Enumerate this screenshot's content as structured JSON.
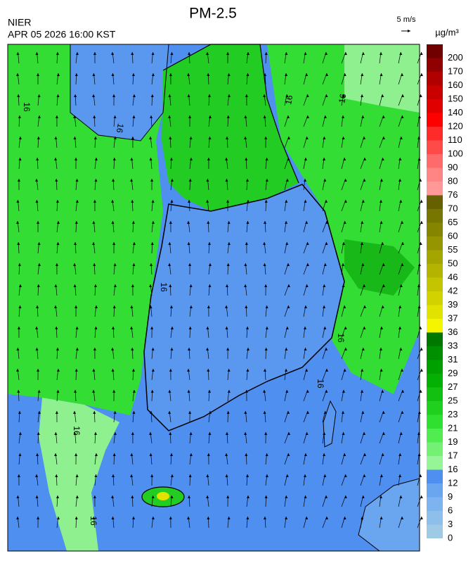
{
  "header": {
    "title": "PM-2.5",
    "agency": "NIER",
    "datetime": "APR 05 2026 16:00 KST",
    "wind_scale": "5 m/s",
    "unit": "µg/m³"
  },
  "colorbar": {
    "levels": [
      {
        "value": 0,
        "color": "#9ecae6"
      },
      {
        "value": 3,
        "color": "#8dbeec"
      },
      {
        "value": 6,
        "color": "#7db3f0"
      },
      {
        "value": 9,
        "color": "#6aa5f0"
      },
      {
        "value": 12,
        "color": "#4f8ff0"
      },
      {
        "value": 16,
        "color": "#96f596"
      },
      {
        "value": 17,
        "color": "#74f074"
      },
      {
        "value": 19,
        "color": "#50ec50"
      },
      {
        "value": 21,
        "color": "#30e030"
      },
      {
        "value": 23,
        "color": "#1fd01f"
      },
      {
        "value": 25,
        "color": "#12c012"
      },
      {
        "value": 27,
        "color": "#05b005"
      },
      {
        "value": 29,
        "color": "#00a000"
      },
      {
        "value": 31,
        "color": "#008f00"
      },
      {
        "value": 33,
        "color": "#007800"
      },
      {
        "value": 36,
        "color": "#f5f500"
      },
      {
        "value": 37,
        "color": "#e2e200"
      },
      {
        "value": 39,
        "color": "#d2d200"
      },
      {
        "value": 42,
        "color": "#c4c400"
      },
      {
        "value": 46,
        "color": "#b4b400"
      },
      {
        "value": 50,
        "color": "#a5a500"
      },
      {
        "value": 55,
        "color": "#959500"
      },
      {
        "value": 60,
        "color": "#858500"
      },
      {
        "value": 65,
        "color": "#767600"
      },
      {
        "value": 70,
        "color": "#676000"
      },
      {
        "value": 76,
        "color": "#ff9999"
      },
      {
        "value": 80,
        "color": "#ff8585"
      },
      {
        "value": 90,
        "color": "#ff6a6a"
      },
      {
        "value": 100,
        "color": "#ff4a4a"
      },
      {
        "value": 110,
        "color": "#ff2a2a"
      },
      {
        "value": 120,
        "color": "#ff0000"
      },
      {
        "value": 140,
        "color": "#e00000"
      },
      {
        "value": 150,
        "color": "#c80000"
      },
      {
        "value": 160,
        "color": "#b00000"
      },
      {
        "value": 170,
        "color": "#900000"
      },
      {
        "value": 200,
        "color": "#700000"
      }
    ]
  },
  "contour_labels": [
    "16",
    "16",
    "16",
    "16",
    "16",
    "16",
    "16",
    "16",
    "16"
  ]
}
